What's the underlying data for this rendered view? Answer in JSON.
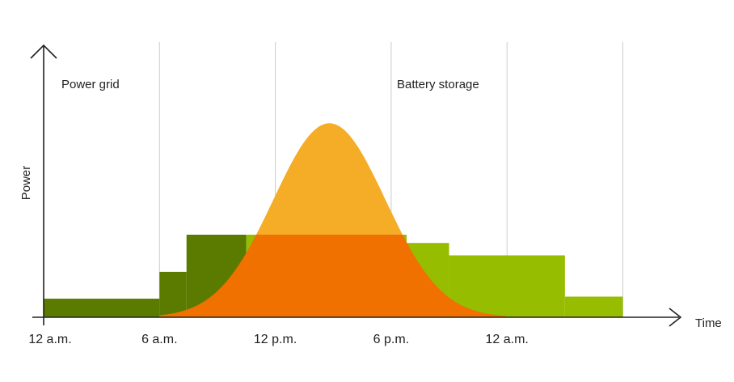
{
  "chart_data": {
    "type": "area",
    "title": "",
    "xlabel": "Time",
    "ylabel": "Power",
    "x_ticks": [
      "12 a.m.",
      "6 a.m.",
      "12 p.m.",
      "6 p.m.",
      "12 a.m."
    ],
    "x_tick_hours": [
      0,
      6,
      12,
      18,
      24
    ],
    "xlim": [
      0,
      30
    ],
    "ylim": [
      0,
      100
    ],
    "grid": "vertical",
    "annotations": [
      {
        "text": "Power grid",
        "x_hour": 1
      },
      {
        "text": "Battery storage",
        "x_hour": 19
      }
    ],
    "series": [
      {
        "kind": "grid-step",
        "color": "#5a7a00",
        "steps": [
          {
            "from": 0,
            "to": 6,
            "value": 9
          },
          {
            "from": 6,
            "to": 7.4,
            "value": 22
          },
          {
            "from": 7.4,
            "to": 10.5,
            "value": 40
          }
        ]
      },
      {
        "kind": "battery-step",
        "color": "#97bd00",
        "steps": [
          {
            "from": 10.5,
            "to": 18.8,
            "value": 40
          },
          {
            "from": 18.8,
            "to": 21,
            "value": 36
          },
          {
            "from": 21,
            "to": 27,
            "value": 30
          },
          {
            "from": 27,
            "to": 30,
            "value": 10
          }
        ]
      },
      {
        "kind": "solar-curve",
        "peak_hour": 14.8,
        "peak_value": 94,
        "sigma_hours": 2.9,
        "color_above": "#f5ac27",
        "color_below": "#f07000",
        "split_value": 40
      }
    ]
  }
}
